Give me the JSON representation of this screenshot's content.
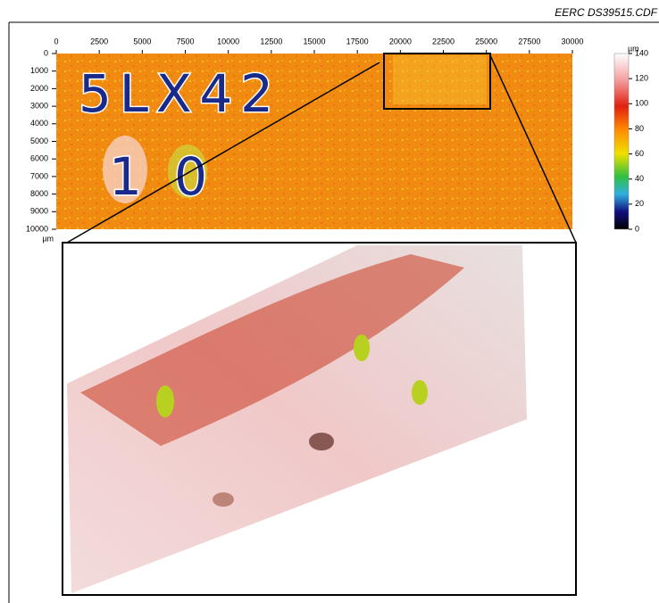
{
  "file_label": "EERC DS39515.CDF",
  "x_axis": {
    "ticks": [
      "0",
      "2500",
      "5000",
      "7500",
      "10000",
      "12500",
      "15000",
      "17500",
      "20000",
      "22500",
      "25000",
      "27500",
      "30000"
    ],
    "unit": "µm"
  },
  "y_axis": {
    "ticks": [
      "0",
      "1000",
      "2000",
      "3000",
      "4000",
      "5000",
      "6000",
      "7000",
      "8000",
      "9000",
      "10000"
    ],
    "unit": "µm"
  },
  "colorbar": {
    "unit": "µm",
    "ticks": [
      "140",
      "120",
      "100",
      "80",
      "60",
      "40",
      "20",
      "0"
    ]
  },
  "engraved_marks": [
    "5LX42",
    "10"
  ]
}
